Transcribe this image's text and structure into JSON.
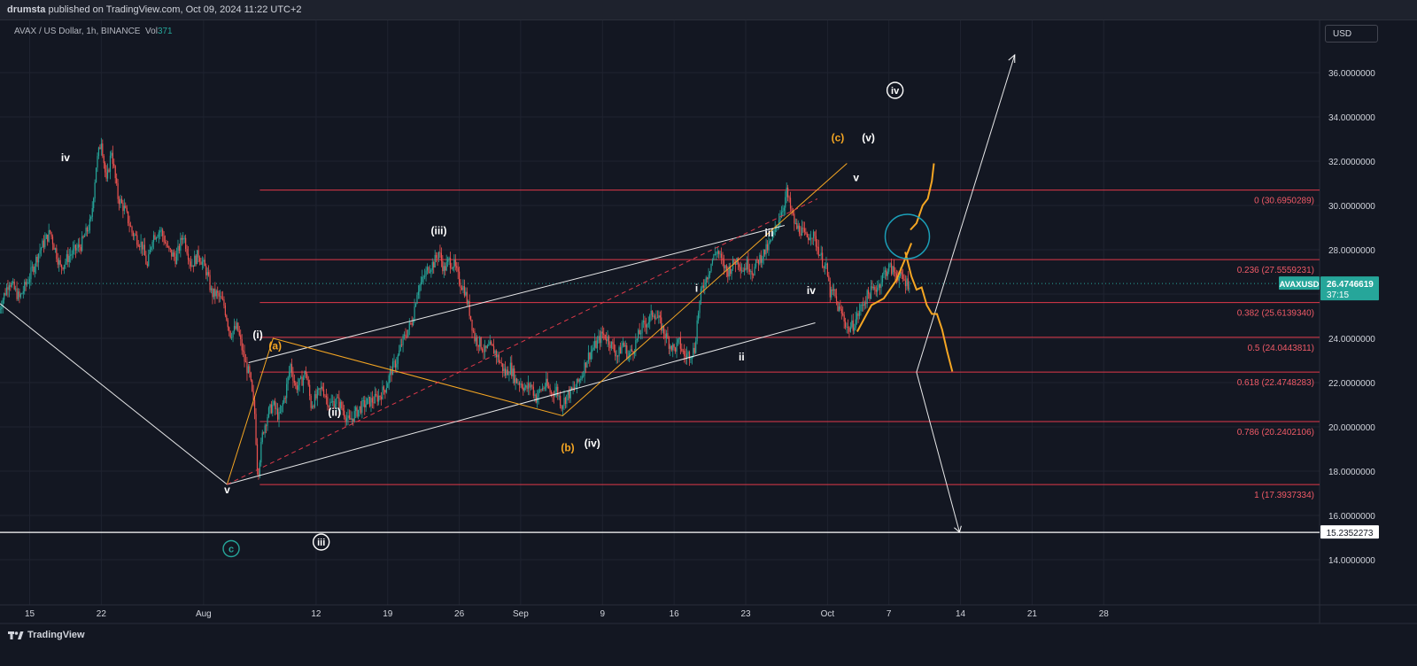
{
  "header": {
    "publisher": "drumsta",
    "published_text": " published on TradingView.com, Oct 09, 2024 11:22 UTC+2"
  },
  "legend": {
    "symbol": "AVAX / US Dollar, 1h, BINANCE",
    "vol_label": "Vol",
    "vol_value": "371"
  },
  "currency_button": "USD",
  "branding": "TradingView",
  "colors": {
    "background": "#131722",
    "fib_line": "#e0394a",
    "fib_text": "#f05a67",
    "orange": "#f5a623",
    "white": "#ffffff",
    "teal": "#26a69a",
    "circle": "#1b9fb8",
    "up_candle": "#26a69a",
    "down_candle": "#ef5350"
  },
  "chart_data": {
    "type": "candlestick",
    "interval": "1h",
    "exchange": "BINANCE",
    "ylim": [
      13.0,
      37.8
    ],
    "y_ticks": [
      "14.0000000",
      "16.0000000",
      "18.0000000",
      "20.0000000",
      "22.0000000",
      "24.0000000",
      "26.0000000",
      "28.0000000",
      "30.0000000",
      "32.0000000",
      "34.0000000",
      "36.0000000"
    ],
    "y_tick_values": [
      14,
      16,
      18,
      20,
      22,
      24,
      26,
      28,
      30,
      32,
      34,
      36
    ],
    "x_ticks": [
      "15",
      "22",
      "Aug",
      "12",
      "19",
      "26",
      "Sep",
      "9",
      "16",
      "23",
      "Oct",
      "7",
      "14",
      "21",
      "28"
    ],
    "x_tick_days": [
      15,
      22,
      32,
      43,
      50,
      57,
      63,
      71,
      78,
      85,
      93,
      99,
      106,
      113,
      120
    ],
    "current_price": {
      "symbol": "AVAXUSD",
      "value": "26.4746619",
      "value_num": 26.4746619,
      "countdown": "37:15"
    },
    "horizontal_level": {
      "label": "15.2352273",
      "value": 15.2352273
    },
    "fib_levels": [
      {
        "label": "0 (30.6950289)",
        "value": 30.6950289
      },
      {
        "label": "0.236 (27.5559231)",
        "value": 27.5559231
      },
      {
        "label": "0.382 (25.6139340)",
        "value": 25.613934
      },
      {
        "label": "0.5 (24.0443811)",
        "value": 24.0443811
      },
      {
        "label": "0.618 (22.4748283)",
        "value": 22.4748283
      },
      {
        "label": "0.786 (20.2402106)",
        "value": 20.2402106
      },
      {
        "label": "1 (17.3937334)",
        "value": 17.3937334
      }
    ],
    "price_path": [
      [
        12.0,
        25.3
      ],
      [
        13.0,
        26.6
      ],
      [
        14.0,
        25.8
      ],
      [
        15.0,
        26.8
      ],
      [
        16.0,
        28.0
      ],
      [
        17.0,
        28.8
      ],
      [
        18.0,
        27.2
      ],
      [
        19.0,
        27.8
      ],
      [
        20.0,
        28.2
      ],
      [
        21.0,
        29.3
      ],
      [
        21.5,
        31.8
      ],
      [
        22.0,
        33.0
      ],
      [
        22.5,
        31.0
      ],
      [
        23.0,
        32.5
      ],
      [
        23.6,
        30.4
      ],
      [
        24.3,
        29.8
      ],
      [
        25.0,
        28.8
      ],
      [
        26.0,
        28.2
      ],
      [
        26.5,
        27.2
      ],
      [
        27.0,
        28.6
      ],
      [
        27.8,
        28.9
      ],
      [
        28.5,
        28.0
      ],
      [
        29.3,
        27.6
      ],
      [
        30.0,
        28.7
      ],
      [
        30.8,
        27.3
      ],
      [
        31.5,
        27.8
      ],
      [
        32.3,
        27.0
      ],
      [
        32.8,
        26.0
      ],
      [
        33.3,
        26.0
      ],
      [
        34.0,
        25.5
      ],
      [
        34.6,
        24.2
      ],
      [
        35.3,
        24.5
      ],
      [
        36.0,
        23.0
      ],
      [
        36.5,
        22.3
      ],
      [
        37.0,
        20.6
      ],
      [
        37.3,
        17.8
      ],
      [
        37.8,
        19.8
      ],
      [
        38.3,
        20.6
      ],
      [
        38.8,
        21.0
      ],
      [
        39.4,
        20.4
      ],
      [
        40.0,
        21.5
      ],
      [
        40.5,
        22.8
      ],
      [
        41.0,
        21.8
      ],
      [
        41.5,
        22.0
      ],
      [
        42.0,
        22.5
      ],
      [
        42.5,
        21.0
      ],
      [
        43.0,
        21.3
      ],
      [
        43.6,
        21.8
      ],
      [
        44.3,
        21.0
      ],
      [
        45.0,
        21.2
      ],
      [
        45.6,
        20.8
      ],
      [
        46.2,
        20.2
      ],
      [
        46.8,
        20.6
      ],
      [
        47.4,
        20.9
      ],
      [
        48.0,
        21.1
      ],
      [
        48.6,
        21.2
      ],
      [
        49.2,
        21.4
      ],
      [
        49.8,
        21.8
      ],
      [
        50.4,
        22.6
      ],
      [
        50.9,
        23.0
      ],
      [
        51.4,
        23.8
      ],
      [
        51.9,
        24.3
      ],
      [
        52.4,
        24.8
      ],
      [
        52.9,
        26.2
      ],
      [
        53.4,
        26.6
      ],
      [
        54.0,
        27.2
      ],
      [
        54.5,
        27.4
      ],
      [
        55.0,
        27.9
      ],
      [
        55.5,
        27.1
      ],
      [
        56.0,
        27.5
      ],
      [
        56.5,
        27.3
      ],
      [
        57.0,
        26.6
      ],
      [
        57.5,
        26.2
      ],
      [
        58.0,
        25.2
      ],
      [
        58.5,
        24.0
      ],
      [
        59.0,
        23.8
      ],
      [
        59.5,
        23.4
      ],
      [
        60.0,
        23.6
      ],
      [
        60.5,
        23.4
      ],
      [
        61.0,
        22.9
      ],
      [
        61.5,
        22.4
      ],
      [
        62.0,
        22.7
      ],
      [
        62.5,
        22.1
      ],
      [
        63.0,
        22.0
      ],
      [
        63.5,
        21.7
      ],
      [
        64.0,
        21.9
      ],
      [
        64.5,
        21.3
      ],
      [
        65.0,
        21.7
      ],
      [
        65.5,
        21.9
      ],
      [
        66.0,
        21.5
      ],
      [
        66.5,
        21.7
      ],
      [
        67.0,
        21.0
      ],
      [
        67.5,
        21.4
      ],
      [
        68.0,
        21.6
      ],
      [
        68.5,
        21.9
      ],
      [
        69.0,
        22.4
      ],
      [
        69.5,
        23.1
      ],
      [
        70.0,
        23.5
      ],
      [
        70.5,
        23.8
      ],
      [
        71.0,
        24.2
      ],
      [
        71.5,
        24.0
      ],
      [
        72.0,
        23.6
      ],
      [
        72.5,
        23.2
      ],
      [
        73.0,
        23.8
      ],
      [
        73.5,
        23.2
      ],
      [
        74.0,
        23.5
      ],
      [
        74.5,
        24.1
      ],
      [
        75.0,
        24.6
      ],
      [
        75.5,
        24.8
      ],
      [
        76.0,
        25.2
      ],
      [
        76.5,
        24.8
      ],
      [
        77.0,
        24.3
      ],
      [
        77.5,
        23.8
      ],
      [
        78.0,
        23.5
      ],
      [
        78.5,
        23.8
      ],
      [
        79.0,
        23.2
      ],
      [
        79.5,
        23.3
      ],
      [
        80.0,
        23.5
      ],
      [
        80.3,
        25.0
      ],
      [
        80.7,
        26.2
      ],
      [
        81.2,
        26.8
      ],
      [
        81.7,
        27.5
      ],
      [
        82.2,
        28.0
      ],
      [
        82.7,
        27.4
      ],
      [
        83.2,
        27.0
      ],
      [
        83.7,
        27.3
      ],
      [
        84.2,
        27.6
      ],
      [
        84.7,
        27.1
      ],
      [
        85.2,
        27.4
      ],
      [
        85.7,
        27.0
      ],
      [
        86.2,
        27.5
      ],
      [
        86.7,
        27.8
      ],
      [
        87.2,
        28.1
      ],
      [
        87.7,
        28.6
      ],
      [
        88.2,
        29.4
      ],
      [
        88.7,
        30.0
      ],
      [
        89.0,
        30.6
      ],
      [
        89.4,
        29.8
      ],
      [
        89.9,
        29.0
      ],
      [
        90.4,
        28.9
      ],
      [
        90.9,
        28.5
      ],
      [
        91.4,
        28.8
      ],
      [
        91.9,
        28.3
      ],
      [
        92.4,
        27.6
      ],
      [
        92.9,
        27.1
      ],
      [
        93.3,
        25.9
      ],
      [
        93.6,
        26.1
      ],
      [
        94.0,
        25.4
      ],
      [
        94.5,
        25.0
      ],
      [
        95.0,
        24.4
      ],
      [
        95.5,
        24.6
      ],
      [
        96.0,
        25.1
      ],
      [
        96.5,
        25.6
      ],
      [
        97.0,
        26.0
      ],
      [
        97.5,
        26.2
      ],
      [
        98.0,
        26.4
      ],
      [
        98.5,
        26.9
      ],
      [
        99.0,
        27.2
      ],
      [
        99.5,
        27.0
      ],
      [
        100.0,
        26.8
      ],
      [
        100.5,
        26.6
      ],
      [
        101.0,
        26.47
      ]
    ],
    "wave_labels": [
      {
        "text": "iv",
        "x": 18.5,
        "y": 32.0,
        "color": "white"
      },
      {
        "text": "(iii)",
        "x": 55.0,
        "y": 28.7,
        "color": "white"
      },
      {
        "text": "(a)",
        "x": 39.0,
        "y": 23.5,
        "color": "orange"
      },
      {
        "text": "(i)",
        "x": 37.3,
        "y": 24.0,
        "color": "white"
      },
      {
        "text": "(ii)",
        "x": 44.8,
        "y": 20.5,
        "color": "white"
      },
      {
        "text": "v",
        "x": 34.3,
        "y": 17.0,
        "color": "white"
      },
      {
        "text": "(b)",
        "x": 67.6,
        "y": 18.9,
        "color": "orange"
      },
      {
        "text": "(iv)",
        "x": 70.0,
        "y": 19.1,
        "color": "white"
      },
      {
        "text": "i",
        "x": 80.2,
        "y": 26.1,
        "color": "white"
      },
      {
        "text": "ii",
        "x": 84.6,
        "y": 23.0,
        "color": "white"
      },
      {
        "text": "iii",
        "x": 87.3,
        "y": 28.6,
        "color": "white"
      },
      {
        "text": "iv",
        "x": 91.4,
        "y": 26.0,
        "color": "white"
      },
      {
        "text": "v",
        "x": 95.8,
        "y": 31.1,
        "color": "white"
      },
      {
        "text": "(c)",
        "x": 94.0,
        "y": 32.9,
        "color": "orange"
      },
      {
        "text": "(v)",
        "x": 97.0,
        "y": 32.9,
        "color": "white"
      }
    ],
    "circled_labels": [
      {
        "text": "iv",
        "x": 99.6,
        "y": 35.2,
        "color": "white"
      },
      {
        "text": "iii",
        "x": 43.5,
        "y": 14.8,
        "color": "white"
      },
      {
        "text": "c",
        "x": 34.7,
        "y": 14.5,
        "color": "teal"
      }
    ]
  }
}
